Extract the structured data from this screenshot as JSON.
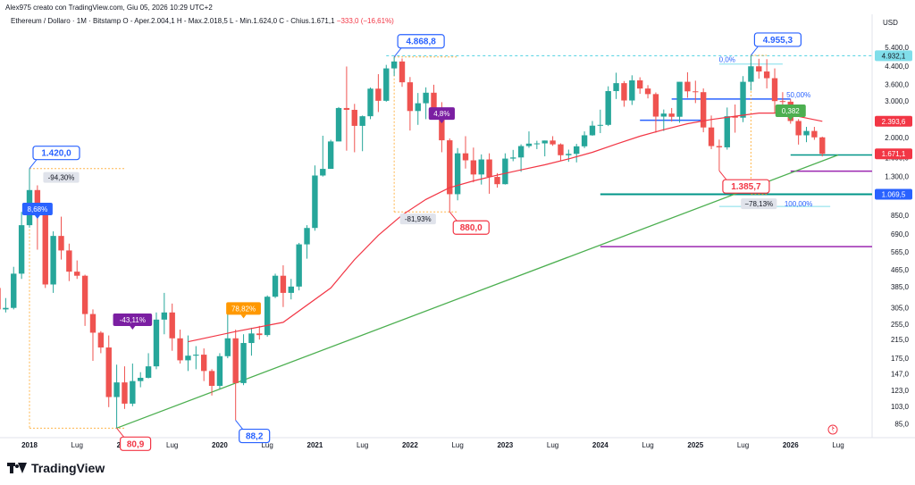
{
  "header": {
    "created_by": "Alex975 creato con TradingView.com, Giu 05, 2026 10:29 UTC+2",
    "symbol": "Ethereum / Dollaro · 1M · Bitstamp",
    "ohlc": "O - Aper.2.004,1 H - Max.2.018,5 L - Min.1.624,0 C - Chius.1.671,1",
    "change": "−333,0 (−16,61%)",
    "currency": "USD"
  },
  "brand": {
    "name": "TradingView"
  },
  "colors": {
    "up": "#26a69a",
    "down": "#ef5350",
    "ma": "#f23645",
    "trendline": "#4caf50",
    "callout_blue": "#2962ff",
    "callout_red": "#f23645",
    "purple": "#7b1fa2",
    "orange": "#ff9800",
    "teal_level": "#009688",
    "magenta_level": "#9c27b0"
  },
  "chart_data": {
    "type": "candlestick",
    "scale": "log",
    "ylim": [
      75,
      6400
    ],
    "y_ticks": [
      "5.400,0",
      "4.400,0",
      "3.600,0",
      "3.000,0",
      "2.000,0",
      "1.600,0",
      "1.300,0",
      "850,0",
      "690,0",
      "565,0",
      "465,0",
      "385,0",
      "305,0",
      "255,0",
      "215,0",
      "175,0",
      "147,0",
      "123,0",
      "103,0",
      "85,0"
    ],
    "x_ticks": [
      "2018",
      "Lug",
      "2019",
      "Lug",
      "2020",
      "Lug",
      "2021",
      "Lug",
      "2022",
      "Lug",
      "2023",
      "Lug",
      "2024",
      "Lug",
      "2025",
      "Lug",
      "2026",
      "Lug"
    ],
    "x_tick_dates": [
      "2018-01",
      "2018-07",
      "2019-01",
      "2019-07",
      "2020-01",
      "2020-07",
      "2021-01",
      "2021-07",
      "2022-01",
      "2022-07",
      "2023-01",
      "2023-07",
      "2024-01",
      "2024-07",
      "2025-01",
      "2025-07",
      "2026-01",
      "2026-07"
    ],
    "candles": [
      {
        "d": "2017-09",
        "o": 380,
        "h": 400,
        "l": 255,
        "c": 300
      },
      {
        "d": "2017-10",
        "o": 300,
        "h": 340,
        "l": 290,
        "c": 305
      },
      {
        "d": "2017-11",
        "o": 305,
        "h": 480,
        "l": 300,
        "c": 445
      },
      {
        "d": "2017-12",
        "o": 445,
        "h": 880,
        "l": 420,
        "c": 760
      },
      {
        "d": "2018-01",
        "o": 760,
        "h": 1420,
        "l": 740,
        "c": 1120
      },
      {
        "d": "2018-02",
        "o": 1120,
        "h": 1180,
        "l": 580,
        "c": 860
      },
      {
        "d": "2018-03",
        "o": 860,
        "h": 870,
        "l": 380,
        "c": 395
      },
      {
        "d": "2018-04",
        "o": 395,
        "h": 710,
        "l": 360,
        "c": 675
      },
      {
        "d": "2018-05",
        "o": 675,
        "h": 835,
        "l": 520,
        "c": 575
      },
      {
        "d": "2018-06",
        "o": 575,
        "h": 620,
        "l": 410,
        "c": 455
      },
      {
        "d": "2018-07",
        "o": 455,
        "h": 515,
        "l": 420,
        "c": 435
      },
      {
        "d": "2018-08",
        "o": 435,
        "h": 440,
        "l": 250,
        "c": 285
      },
      {
        "d": "2018-09",
        "o": 285,
        "h": 300,
        "l": 170,
        "c": 232
      },
      {
        "d": "2018-10",
        "o": 232,
        "h": 236,
        "l": 185,
        "c": 197
      },
      {
        "d": "2018-11",
        "o": 197,
        "h": 225,
        "l": 102,
        "c": 114
      },
      {
        "d": "2018-12",
        "o": 114,
        "h": 163,
        "l": 80.9,
        "c": 134
      },
      {
        "d": "2019-01",
        "o": 134,
        "h": 160,
        "l": 100,
        "c": 106
      },
      {
        "d": "2019-02",
        "o": 106,
        "h": 165,
        "l": 103,
        "c": 136
      },
      {
        "d": "2019-03",
        "o": 136,
        "h": 150,
        "l": 127,
        "c": 141
      },
      {
        "d": "2019-04",
        "o": 141,
        "h": 185,
        "l": 140,
        "c": 160
      },
      {
        "d": "2019-05",
        "o": 160,
        "h": 290,
        "l": 155,
        "c": 268
      },
      {
        "d": "2019-06",
        "o": 268,
        "h": 360,
        "l": 228,
        "c": 290
      },
      {
        "d": "2019-07",
        "o": 290,
        "h": 320,
        "l": 190,
        "c": 218
      },
      {
        "d": "2019-08",
        "o": 218,
        "h": 240,
        "l": 165,
        "c": 171
      },
      {
        "d": "2019-09",
        "o": 171,
        "h": 225,
        "l": 152,
        "c": 180
      },
      {
        "d": "2019-10",
        "o": 180,
        "h": 200,
        "l": 155,
        "c": 182
      },
      {
        "d": "2019-11",
        "o": 182,
        "h": 195,
        "l": 136,
        "c": 152
      },
      {
        "d": "2019-12",
        "o": 152,
        "h": 155,
        "l": 116,
        "c": 129
      },
      {
        "d": "2020-01",
        "o": 129,
        "h": 185,
        "l": 125,
        "c": 179
      },
      {
        "d": "2020-02",
        "o": 179,
        "h": 290,
        "l": 175,
        "c": 218
      },
      {
        "d": "2020-03",
        "o": 218,
        "h": 240,
        "l": 88.2,
        "c": 133
      },
      {
        "d": "2020-04",
        "o": 133,
        "h": 228,
        "l": 130,
        "c": 207
      },
      {
        "d": "2020-05",
        "o": 207,
        "h": 245,
        "l": 180,
        "c": 230
      },
      {
        "d": "2020-06",
        "o": 230,
        "h": 250,
        "l": 215,
        "c": 226
      },
      {
        "d": "2020-07",
        "o": 226,
        "h": 350,
        "l": 222,
        "c": 345
      },
      {
        "d": "2020-08",
        "o": 345,
        "h": 445,
        "l": 340,
        "c": 435
      },
      {
        "d": "2020-09",
        "o": 435,
        "h": 488,
        "l": 308,
        "c": 360
      },
      {
        "d": "2020-10",
        "o": 360,
        "h": 420,
        "l": 335,
        "c": 386
      },
      {
        "d": "2020-11",
        "o": 386,
        "h": 625,
        "l": 370,
        "c": 615
      },
      {
        "d": "2020-12",
        "o": 615,
        "h": 760,
        "l": 525,
        "c": 737
      },
      {
        "d": "2021-01",
        "o": 737,
        "h": 1470,
        "l": 715,
        "c": 1315
      },
      {
        "d": "2021-02",
        "o": 1315,
        "h": 2040,
        "l": 1300,
        "c": 1415
      },
      {
        "d": "2021-03",
        "o": 1415,
        "h": 1950,
        "l": 1440,
        "c": 1915
      },
      {
        "d": "2021-04",
        "o": 1915,
        "h": 2800,
        "l": 1920,
        "c": 2770
      },
      {
        "d": "2021-05",
        "o": 2770,
        "h": 4380,
        "l": 1730,
        "c": 2715
      },
      {
        "d": "2021-06",
        "o": 2715,
        "h": 2900,
        "l": 1700,
        "c": 2275
      },
      {
        "d": "2021-07",
        "o": 2275,
        "h": 2550,
        "l": 1720,
        "c": 2530
      },
      {
        "d": "2021-08",
        "o": 2530,
        "h": 3475,
        "l": 2450,
        "c": 3430
      },
      {
        "d": "2021-09",
        "o": 3430,
        "h": 4025,
        "l": 2650,
        "c": 3000
      },
      {
        "d": "2021-10",
        "o": 3000,
        "h": 4460,
        "l": 2970,
        "c": 4290
      },
      {
        "d": "2021-11",
        "o": 4290,
        "h": 4868.8,
        "l": 3950,
        "c": 4630
      },
      {
        "d": "2021-12",
        "o": 4630,
        "h": 4785,
        "l": 3500,
        "c": 3680
      },
      {
        "d": "2022-01",
        "o": 3680,
        "h": 3900,
        "l": 2160,
        "c": 2680
      },
      {
        "d": "2022-02",
        "o": 2680,
        "h": 3270,
        "l": 2300,
        "c": 2920
      },
      {
        "d": "2022-03",
        "o": 2920,
        "h": 3480,
        "l": 2450,
        "c": 3280
      },
      {
        "d": "2022-04",
        "o": 3280,
        "h": 3580,
        "l": 2700,
        "c": 2730
      },
      {
        "d": "2022-05",
        "o": 2730,
        "h": 2955,
        "l": 1700,
        "c": 1940
      },
      {
        "d": "2022-06",
        "o": 1940,
        "h": 1980,
        "l": 880,
        "c": 1070
      },
      {
        "d": "2022-07",
        "o": 1070,
        "h": 1780,
        "l": 1000,
        "c": 1680
      },
      {
        "d": "2022-08",
        "o": 1680,
        "h": 2030,
        "l": 1420,
        "c": 1555
      },
      {
        "d": "2022-09",
        "o": 1555,
        "h": 1790,
        "l": 1220,
        "c": 1330
      },
      {
        "d": "2022-10",
        "o": 1330,
        "h": 1660,
        "l": 1190,
        "c": 1570
      },
      {
        "d": "2022-11",
        "o": 1570,
        "h": 1680,
        "l": 1075,
        "c": 1295
      },
      {
        "d": "2022-12",
        "o": 1295,
        "h": 1350,
        "l": 1150,
        "c": 1195
      },
      {
        "d": "2023-01",
        "o": 1195,
        "h": 1680,
        "l": 1190,
        "c": 1585
      },
      {
        "d": "2023-02",
        "o": 1585,
        "h": 1745,
        "l": 1540,
        "c": 1605
      },
      {
        "d": "2023-03",
        "o": 1605,
        "h": 1855,
        "l": 1370,
        "c": 1820
      },
      {
        "d": "2023-04",
        "o": 1820,
        "h": 2140,
        "l": 1785,
        "c": 1870
      },
      {
        "d": "2023-05",
        "o": 1870,
        "h": 1930,
        "l": 1760,
        "c": 1875
      },
      {
        "d": "2023-06",
        "o": 1875,
        "h": 1935,
        "l": 1625,
        "c": 1935
      },
      {
        "d": "2023-07",
        "o": 1935,
        "h": 2030,
        "l": 1825,
        "c": 1855
      },
      {
        "d": "2023-08",
        "o": 1855,
        "h": 1875,
        "l": 1550,
        "c": 1645
      },
      {
        "d": "2023-09",
        "o": 1645,
        "h": 1750,
        "l": 1530,
        "c": 1670
      },
      {
        "d": "2023-10",
        "o": 1670,
        "h": 1865,
        "l": 1520,
        "c": 1815
      },
      {
        "d": "2023-11",
        "o": 1815,
        "h": 2140,
        "l": 1780,
        "c": 2050
      },
      {
        "d": "2023-12",
        "o": 2050,
        "h": 2400,
        "l": 2040,
        "c": 2280
      },
      {
        "d": "2024-01",
        "o": 2280,
        "h": 2720,
        "l": 2100,
        "c": 2300
      },
      {
        "d": "2024-02",
        "o": 2300,
        "h": 3520,
        "l": 2270,
        "c": 3340
      },
      {
        "d": "2024-03",
        "o": 3340,
        "h": 4090,
        "l": 3060,
        "c": 3645
      },
      {
        "d": "2024-04",
        "o": 3645,
        "h": 3730,
        "l": 2810,
        "c": 3010
      },
      {
        "d": "2024-05",
        "o": 3010,
        "h": 3975,
        "l": 2865,
        "c": 3760
      },
      {
        "d": "2024-06",
        "o": 3760,
        "h": 3890,
        "l": 3240,
        "c": 3435
      },
      {
        "d": "2024-07",
        "o": 3435,
        "h": 3565,
        "l": 3080,
        "c": 3230
      },
      {
        "d": "2024-08",
        "o": 3230,
        "h": 3290,
        "l": 2110,
        "c": 2520
      },
      {
        "d": "2024-09",
        "o": 2520,
        "h": 2725,
        "l": 2150,
        "c": 2605
      },
      {
        "d": "2024-10",
        "o": 2605,
        "h": 2770,
        "l": 2385,
        "c": 2515
      },
      {
        "d": "2024-11",
        "o": 2515,
        "h": 3690,
        "l": 2355,
        "c": 3700
      },
      {
        "d": "2024-12",
        "o": 3700,
        "h": 4110,
        "l": 3100,
        "c": 3330
      },
      {
        "d": "2025-01",
        "o": 3330,
        "h": 3745,
        "l": 2925,
        "c": 3300
      },
      {
        "d": "2025-02",
        "o": 3300,
        "h": 3440,
        "l": 2120,
        "c": 2235
      },
      {
        "d": "2025-03",
        "o": 2235,
        "h": 2550,
        "l": 1760,
        "c": 1820
      },
      {
        "d": "2025-04",
        "o": 1820,
        "h": 1955,
        "l": 1385.7,
        "c": 1795
      },
      {
        "d": "2025-05",
        "o": 1795,
        "h": 2785,
        "l": 1750,
        "c": 2530
      },
      {
        "d": "2025-06",
        "o": 2530,
        "h": 2880,
        "l": 2110,
        "c": 2490
      },
      {
        "d": "2025-07",
        "o": 2490,
        "h": 3940,
        "l": 2370,
        "c": 3700
      },
      {
        "d": "2025-08",
        "o": 3700,
        "h": 4955.3,
        "l": 3360,
        "c": 4390
      },
      {
        "d": "2025-09",
        "o": 4390,
        "h": 4770,
        "l": 3830,
        "c": 4145
      },
      {
        "d": "2025-10",
        "o": 4145,
        "h": 4750,
        "l": 3440,
        "c": 3850
      },
      {
        "d": "2025-11",
        "o": 3850,
        "h": 4290,
        "l": 2620,
        "c": 2990
      },
      {
        "d": "2025-12",
        "o": 2990,
        "h": 3300,
        "l": 2780,
        "c": 2970
      },
      {
        "d": "2026-01",
        "o": 2970,
        "h": 3050,
        "l": 2330,
        "c": 2400
      },
      {
        "d": "2026-02",
        "o": 2400,
        "h": 2450,
        "l": 1850,
        "c": 2050
      },
      {
        "d": "2026-03",
        "o": 2050,
        "h": 2250,
        "l": 1900,
        "c": 2150
      },
      {
        "d": "2026-04",
        "o": 2150,
        "h": 2250,
        "l": 1950,
        "c": 2004.1
      },
      {
        "d": "2026-05",
        "o": 2004.1,
        "h": 2018.5,
        "l": 1624,
        "c": 1671.1
      }
    ],
    "moving_average": [
      {
        "d": "2019-09",
        "v": 210
      },
      {
        "d": "2020-03",
        "v": 235
      },
      {
        "d": "2020-09",
        "v": 260
      },
      {
        "d": "2021-03",
        "v": 380
      },
      {
        "d": "2021-06",
        "v": 520
      },
      {
        "d": "2021-09",
        "v": 680
      },
      {
        "d": "2021-12",
        "v": 850
      },
      {
        "d": "2022-03",
        "v": 1010
      },
      {
        "d": "2022-06",
        "v": 1150
      },
      {
        "d": "2022-09",
        "v": 1240
      },
      {
        "d": "2022-12",
        "v": 1320
      },
      {
        "d": "2023-03",
        "v": 1400
      },
      {
        "d": "2023-06",
        "v": 1480
      },
      {
        "d": "2023-09",
        "v": 1580
      },
      {
        "d": "2023-12",
        "v": 1700
      },
      {
        "d": "2024-03",
        "v": 1860
      },
      {
        "d": "2024-06",
        "v": 2030
      },
      {
        "d": "2024-09",
        "v": 2180
      },
      {
        "d": "2024-12",
        "v": 2330
      },
      {
        "d": "2025-03",
        "v": 2440
      },
      {
        "d": "2025-06",
        "v": 2530
      },
      {
        "d": "2025-09",
        "v": 2620
      },
      {
        "d": "2025-12",
        "v": 2620
      },
      {
        "d": "2026-03",
        "v": 2480
      },
      {
        "d": "2026-05",
        "v": 2393.6
      }
    ],
    "trendline": [
      {
        "d": "2018-12",
        "v": 80.9
      },
      {
        "d": "2026-07",
        "v": 1650
      }
    ],
    "price_labels": [
      {
        "text": "4.932,1",
        "v": 4932.1,
        "bg": "#80deea",
        "fg": "#131722"
      },
      {
        "text": "2.393,6",
        "v": 2393.6,
        "bg": "#f23645",
        "fg": "#ffffff"
      },
      {
        "text": "1.671,1",
        "v": 1671.1,
        "bg": "#f23645",
        "fg": "#ffffff"
      },
      {
        "text": "1.069,5",
        "v": 1069.5,
        "bg": "#2962ff",
        "fg": "#ffffff"
      }
    ],
    "callouts": [
      {
        "text": "1.420,0",
        "d": "2018-01",
        "v": 1420,
        "pos": "above",
        "color": "#2962ff"
      },
      {
        "text": "80,9",
        "d": "2018-12",
        "v": 80.9,
        "pos": "below",
        "color": "#f23645"
      },
      {
        "text": "88,2",
        "d": "2020-03",
        "v": 88.2,
        "pos": "below",
        "color": "#2962ff"
      },
      {
        "text": "4.868,8",
        "d": "2021-11",
        "v": 4868.8,
        "pos": "above",
        "color": "#2962ff"
      },
      {
        "text": "880,0",
        "d": "2022-06",
        "v": 880,
        "pos": "below",
        "color": "#f23645"
      },
      {
        "text": "1.385,7",
        "d": "2025-04",
        "v": 1385.7,
        "pos": "below",
        "color": "#f23645"
      },
      {
        "text": "4.955,3",
        "d": "2025-08",
        "v": 4955.3,
        "pos": "above",
        "color": "#2962ff"
      }
    ],
    "badges": [
      {
        "text": "8,68%",
        "d": "2018-02",
        "v": 900,
        "color": "#2962ff"
      },
      {
        "text": "-43,11%",
        "d": "2019-02",
        "v": 265,
        "color": "#7b1fa2"
      },
      {
        "text": "78,82%",
        "d": "2020-04",
        "v": 300,
        "color": "#ff9800"
      },
      {
        "text": "4,8%",
        "d": "2022-05",
        "v": 2580,
        "color": "#7b1fa2"
      },
      {
        "text": "0,382",
        "d": "2026-01",
        "v": 2660,
        "color": "#4caf50"
      }
    ],
    "annotations": [
      {
        "text": "-94,30%",
        "d": "2018-05",
        "v": 1250
      },
      {
        "text": "-81,93%",
        "d": "2022-02",
        "v": 790
      },
      {
        "text": "−78,13%",
        "d": "2025-09",
        "v": 935
      },
      {
        "text": "0,0%",
        "d": "2025-05",
        "v": 4600
      },
      {
        "text": "50,00%",
        "d": "2026-02",
        "v": 3120
      },
      {
        "text": "100,00%",
        "d": "2026-02",
        "v": 935
      }
    ]
  }
}
